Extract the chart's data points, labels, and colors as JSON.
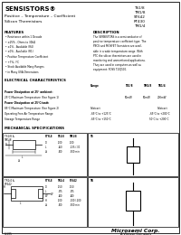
{
  "title": "SENSISTORS®",
  "subtitle1": "Positive – Temperature – Coefficient",
  "subtitle2": "Silicon Thermistors",
  "part_numbers": [
    "TS1/8",
    "TM1/8",
    "ST642",
    "RT430",
    "TM1/4"
  ],
  "features_title": "FEATURES",
  "features": [
    "Resistance within 1 Decade",
    "±25% - Ohms to 30kΩ",
    "±1% - Available (R4)",
    "±0% - Available (R1)",
    "Positive Temperature Coefficient",
    "+7%, /°C",
    "Stock Available Many Ranges",
    "in Many USA Dimensions"
  ],
  "description_title": "DESCRIPTION",
  "description_lines": [
    "The SENSISTORS is a semiconductor of",
    "positive temperature coefficient type. The",
    "PBCS and MOSFET Sensistors are avail-",
    "able in a wide temperature range. With",
    "PTC the silicon thermistors are used in",
    "monitoring and unmonitored applications.",
    "They are used in computers as well as",
    "equipment: FOSS T-EQ500."
  ],
  "electrical_title": "ELECTRICAL CHARACTERISTICS",
  "col1_header": "Power Dissipation at 25° ambient:",
  "col_headers": [
    "Range",
    "TS1/8",
    "TM1/8",
    "TR1/4"
  ],
  "row1_label": "25°C Maximum Temperature (See Figure 1)",
  "row1_vals": [
    "50mW",
    "50mW",
    "200mW"
  ],
  "col2_header": "Power Dissipation at 25°C/watt:",
  "row2_label": "85°C Maximum Temperature (See Figure 2)",
  "row2_vals": [
    "Subtract",
    "",
    "Subtract"
  ],
  "row3_label": "Operating Free Air Temperature Range",
  "row3_vals": [
    "-65°C to +125°C",
    "",
    "-65°C to +200°C"
  ],
  "row4_label": "Storage Temperature Range",
  "row4_vals": [
    "-65°C to +150°C",
    "",
    "50°C to +200°C"
  ],
  "mechanical_title": "MECHANICAL SPECIFICATIONS",
  "mech_label1": "TS1/8 &\nTM1/8",
  "mech_label2": "TR1/4 &\nST642",
  "mech_ts_label": "TS",
  "mech_tr_label": "TR",
  "tbl1_headers": [
    "STYLE",
    "TS1/8",
    "TM1/8"
  ],
  "tbl1_rows": [
    [
      "D",
      ".100",
      ".100"
    ],
    [
      "L",
      ".250",
      ".235 /.30"
    ],
    [
      "Ld",
      ".500",
      ".500 min"
    ]
  ],
  "tbl2_headers": [
    "STYLE",
    "TR1/4",
    "ST642"
  ],
  "tbl2_rows": [
    [
      "D",
      ".150",
      ".150"
    ],
    [
      "L",
      ".375",
      ".375"
    ],
    [
      "W",
      ".200",
      ".200"
    ],
    [
      "H",
      ".100",
      ".100 /.200"
    ],
    [
      "Ld",
      ".500",
      ".500 min"
    ]
  ],
  "company": "Microsemi Corp.",
  "company_sub": "A Vitesse Company",
  "company_url": "www.microsemi.com",
  "page_num": "6-195",
  "rev": "A-10",
  "bg_color": "#ffffff",
  "text_color": "#000000"
}
